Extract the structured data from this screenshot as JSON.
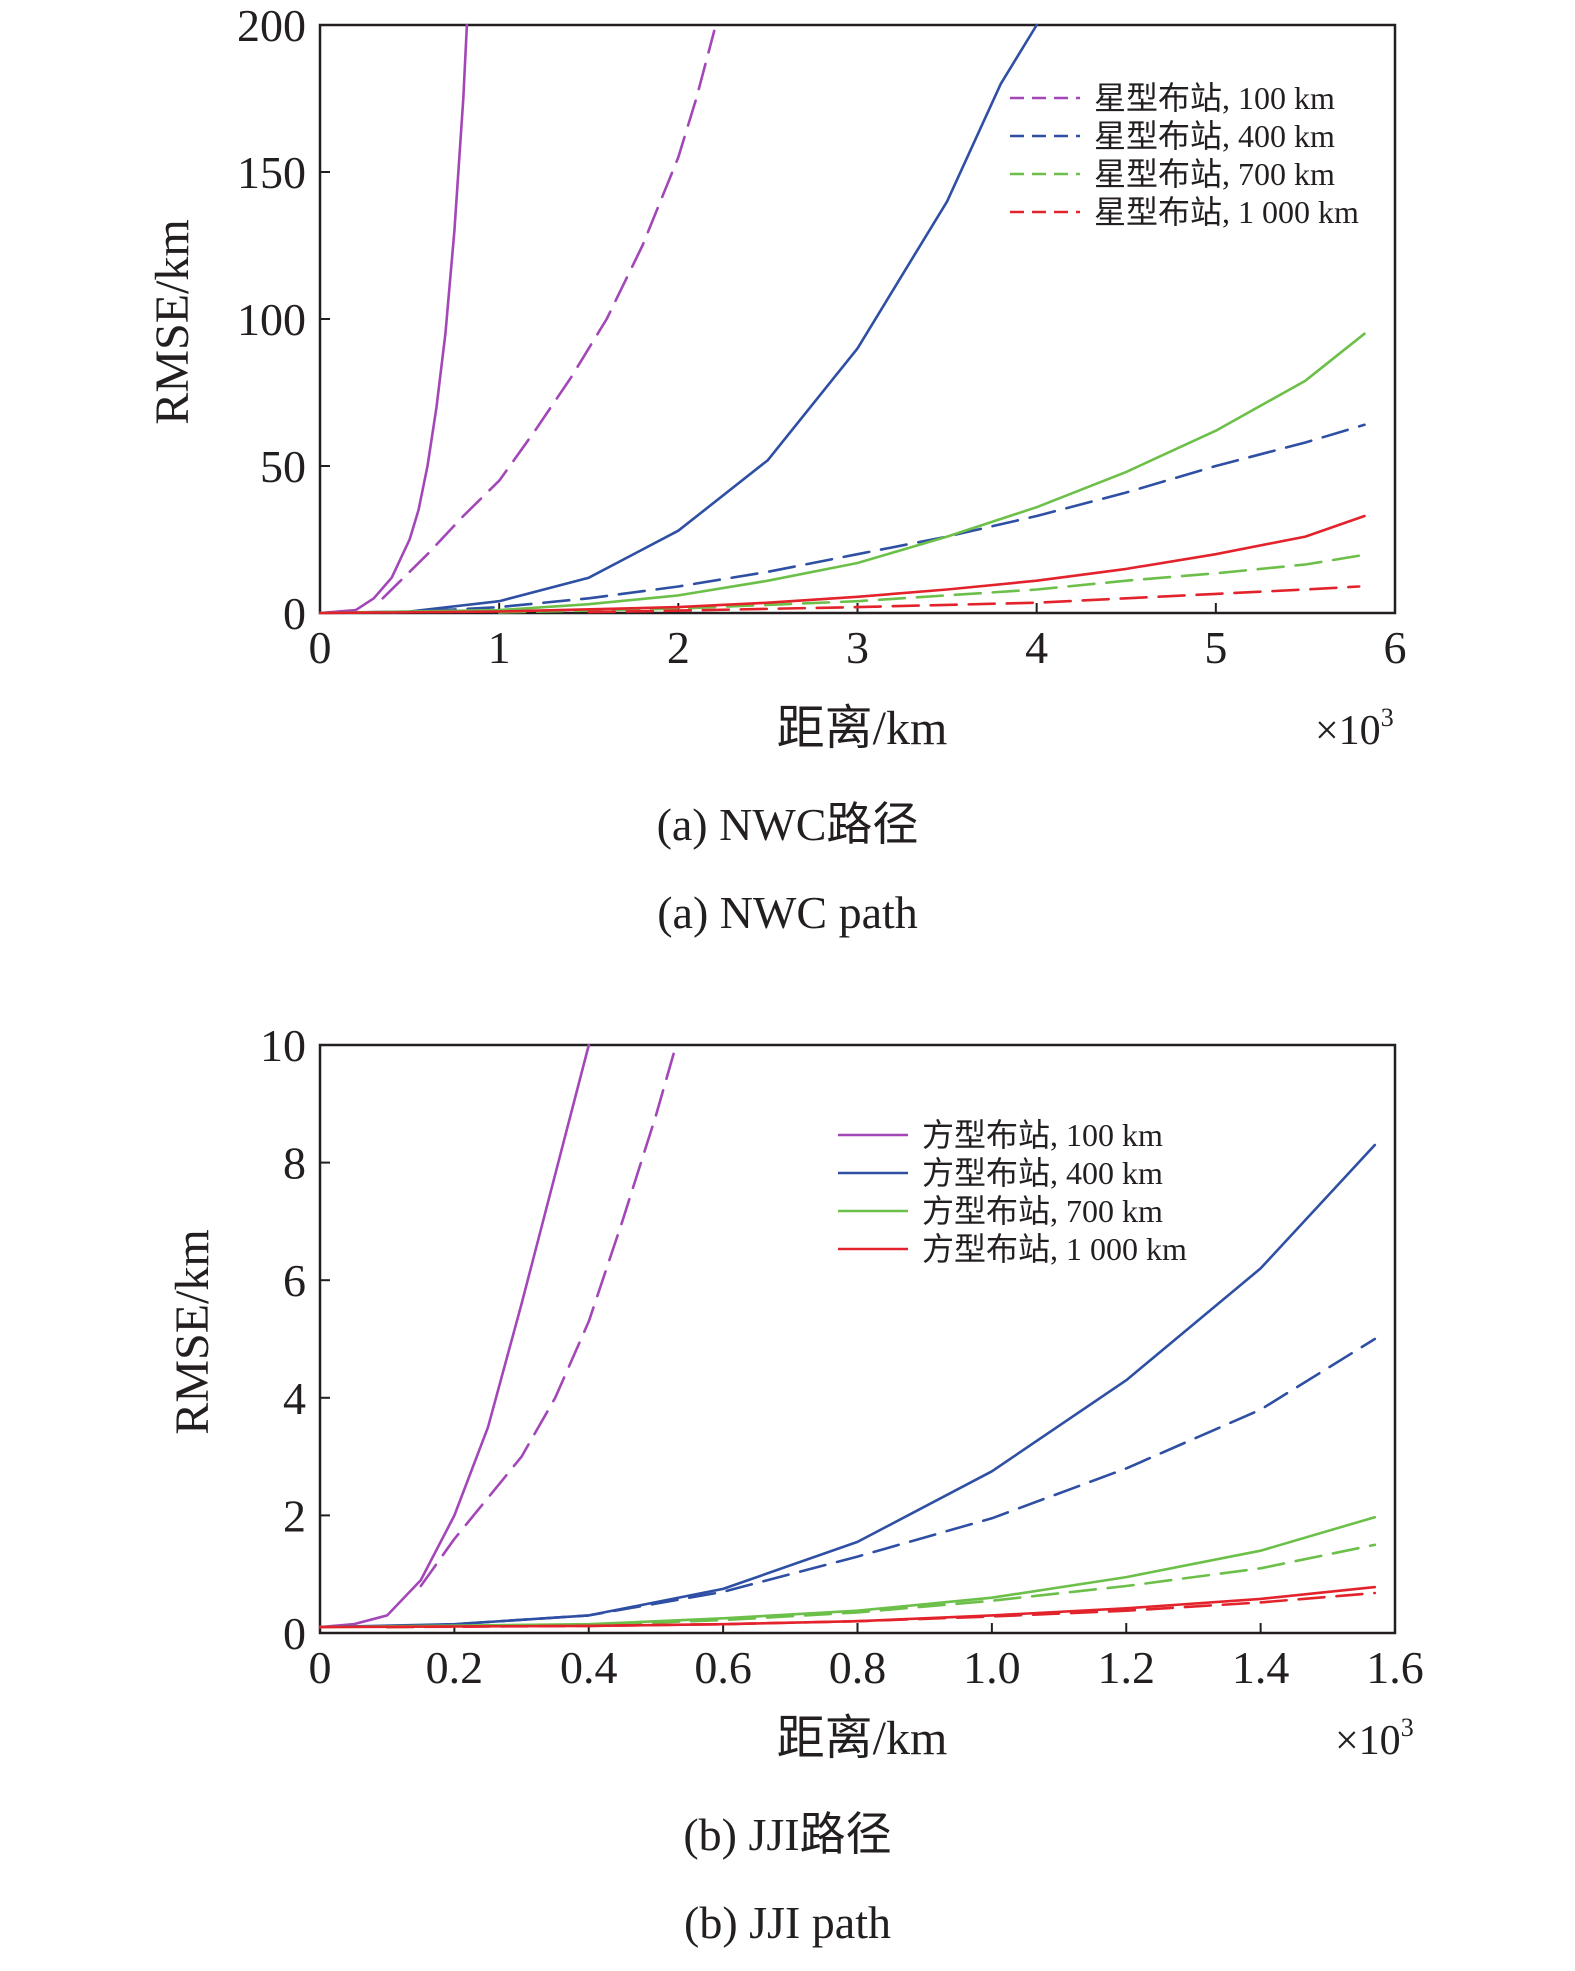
{
  "figures": [
    {
      "caption_cn": "(a) NWC路径",
      "caption_en": "(a)  NWC path",
      "multiplier": "×10",
      "multiplier_exp": "3",
      "legend_line_style": "dashed",
      "legend_entries": [
        "星型布站, 100 km",
        "星型布站, 400 km",
        "星型布站, 700 km",
        "星型布站, 1 000 km"
      ]
    },
    {
      "caption_cn": "(b) JJI路径",
      "caption_en": "(b)  JJI path",
      "multiplier": "×10",
      "multiplier_exp": "3",
      "legend_line_style": "solid",
      "legend_entries": [
        "方型布站, 100 km",
        "方型布站, 400 km",
        "方型布站, 700 km",
        "方型布站, 1 000 km"
      ]
    }
  ],
  "chart_data": [
    {
      "type": "line",
      "xlabel": "距离/km",
      "ylabel": "RMSE/km",
      "xlim": [
        0,
        6
      ],
      "ylim": [
        0,
        200
      ],
      "xticks": [
        "0",
        "1",
        "2",
        "3",
        "4",
        "5",
        "6"
      ],
      "yticks": [
        "0",
        "50",
        "100",
        "150",
        "200"
      ],
      "legend_position": "top-right",
      "colors": {
        "100": "#a347b8",
        "400": "#2e4fa3",
        "700": "#6cc04a",
        "1000": "#e3232c"
      },
      "series": [
        {
          "name": "星型布站, 100 km",
          "station": "100",
          "dash": "solid",
          "x": [
            0,
            0.2,
            0.3,
            0.4,
            0.5,
            0.55,
            0.6,
            0.65,
            0.7,
            0.75,
            0.8,
            0.82
          ],
          "y": [
            0,
            1,
            5,
            12,
            25,
            35,
            50,
            70,
            95,
            130,
            175,
            200
          ]
        },
        {
          "name": "星型布站, 100 km",
          "station": "100",
          "dash": "dashed",
          "x": [
            0.35,
            0.6,
            0.8,
            1.0,
            1.2,
            1.4,
            1.6,
            1.8,
            2.0,
            2.1,
            2.2
          ],
          "y": [
            5,
            20,
            33,
            45,
            62,
            80,
            100,
            125,
            155,
            175,
            198
          ]
        },
        {
          "name": "星型布站, 400 km",
          "station": "400",
          "dash": "solid",
          "x": [
            0,
            0.5,
            1.0,
            1.5,
            2.0,
            2.5,
            3.0,
            3.5,
            3.8,
            4.0
          ],
          "y": [
            0,
            0.5,
            4,
            12,
            28,
            52,
            90,
            140,
            180,
            200
          ]
        },
        {
          "name": "星型布站, 400 km",
          "station": "400",
          "dash": "dashed",
          "x": [
            0.4,
            1.0,
            1.5,
            2.0,
            2.5,
            3.0,
            3.5,
            4.0,
            4.5,
            5.0,
            5.5,
            5.83
          ],
          "y": [
            0.1,
            2,
            5,
            9,
            14,
            20,
            26,
            33,
            41,
            50,
            58,
            64
          ]
        },
        {
          "name": "星型布站, 700 km",
          "station": "700",
          "dash": "solid",
          "x": [
            0,
            1.0,
            1.5,
            2.0,
            2.5,
            3.0,
            3.5,
            4.0,
            4.5,
            5.0,
            5.5,
            5.83
          ],
          "y": [
            0,
            1,
            3,
            6,
            11,
            17,
            26,
            36,
            48,
            62,
            79,
            95
          ]
        },
        {
          "name": "星型布站, 700 km",
          "station": "700",
          "dash": "dashed",
          "x": [
            1.0,
            2.0,
            3.0,
            4.0,
            4.5,
            5.0,
            5.5,
            5.8
          ],
          "y": [
            0.2,
            1.5,
            4,
            8,
            11,
            13.5,
            16.5,
            19.5
          ]
        },
        {
          "name": "星型布站, 1 000 km",
          "station": "1000",
          "dash": "solid",
          "x": [
            0,
            1.0,
            2.0,
            2.5,
            3.0,
            3.5,
            4.0,
            4.5,
            5.0,
            5.5,
            5.83
          ],
          "y": [
            0,
            0.5,
            2,
            3.5,
            5.5,
            8,
            11,
            15,
            20,
            26,
            33
          ]
        },
        {
          "name": "星型布站, 1 000 km",
          "station": "1000",
          "dash": "dashed",
          "x": [
            1.5,
            2.0,
            3.0,
            4.0,
            4.5,
            5.0,
            5.5,
            5.8
          ],
          "y": [
            0.3,
            0.8,
            2,
            3.5,
            5,
            6.5,
            8,
            9
          ]
        }
      ]
    },
    {
      "type": "line",
      "xlabel": "距离/km",
      "ylabel": "RMSE/km",
      "xlim": [
        0,
        1.6
      ],
      "ylim": [
        0,
        10
      ],
      "xticks": [
        "0",
        "0.2",
        "0.4",
        "0.6",
        "0.8",
        "1.0",
        "1.2",
        "1.4",
        "1.6"
      ],
      "yticks": [
        "0",
        "2",
        "4",
        "6",
        "8",
        "10"
      ],
      "legend_position": "top-right",
      "colors": {
        "100": "#a347b8",
        "400": "#2e4fa3",
        "700": "#6cc04a",
        "1000": "#e3232c"
      },
      "series": [
        {
          "name": "方型布站, 100 km",
          "station": "100",
          "dash": "solid",
          "x": [
            0,
            0.05,
            0.1,
            0.15,
            0.2,
            0.25,
            0.3,
            0.35,
            0.4
          ],
          "y": [
            0.1,
            0.15,
            0.3,
            0.9,
            2.0,
            3.5,
            5.6,
            7.8,
            10
          ]
        },
        {
          "name": "方型布站, 100 km",
          "station": "100",
          "dash": "dashed",
          "x": [
            0.15,
            0.2,
            0.25,
            0.3,
            0.35,
            0.4,
            0.45,
            0.5,
            0.53
          ],
          "y": [
            0.8,
            1.6,
            2.3,
            3.0,
            4.0,
            5.3,
            7.0,
            8.8,
            10
          ]
        },
        {
          "name": "方型布站, 400 km",
          "station": "400",
          "dash": "solid",
          "x": [
            0,
            0.2,
            0.4,
            0.6,
            0.8,
            1.0,
            1.2,
            1.4,
            1.57
          ],
          "y": [
            0.1,
            0.15,
            0.3,
            0.75,
            1.55,
            2.75,
            4.3,
            6.2,
            8.3
          ]
        },
        {
          "name": "方型布站, 400 km",
          "station": "400",
          "dash": "dashed",
          "x": [
            0.1,
            0.2,
            0.4,
            0.6,
            0.8,
            1.0,
            1.2,
            1.4,
            1.57
          ],
          "y": [
            0.1,
            0.15,
            0.3,
            0.7,
            1.3,
            1.95,
            2.8,
            3.8,
            5.0
          ]
        },
        {
          "name": "方型布站, 700 km",
          "station": "700",
          "dash": "solid",
          "x": [
            0,
            0.4,
            0.6,
            0.8,
            1.0,
            1.2,
            1.4,
            1.57
          ],
          "y": [
            0.1,
            0.15,
            0.25,
            0.38,
            0.6,
            0.95,
            1.4,
            1.97
          ]
        },
        {
          "name": "方型布站, 700 km",
          "station": "700",
          "dash": "dashed",
          "x": [
            0.1,
            0.4,
            0.6,
            0.8,
            1.0,
            1.2,
            1.4,
            1.57
          ],
          "y": [
            0.1,
            0.14,
            0.22,
            0.35,
            0.55,
            0.8,
            1.1,
            1.5
          ]
        },
        {
          "name": "方型布站, 1 000 km",
          "station": "1000",
          "dash": "solid",
          "x": [
            0,
            0.4,
            0.6,
            0.8,
            1.0,
            1.2,
            1.4,
            1.57
          ],
          "y": [
            0.1,
            0.12,
            0.15,
            0.2,
            0.3,
            0.42,
            0.58,
            0.78
          ]
        },
        {
          "name": "方型布站, 1 000 km",
          "station": "1000",
          "dash": "dashed",
          "x": [
            0.1,
            0.4,
            0.6,
            0.8,
            1.0,
            1.2,
            1.4,
            1.57
          ],
          "y": [
            0.1,
            0.12,
            0.15,
            0.2,
            0.28,
            0.38,
            0.52,
            0.68
          ]
        }
      ]
    }
  ]
}
